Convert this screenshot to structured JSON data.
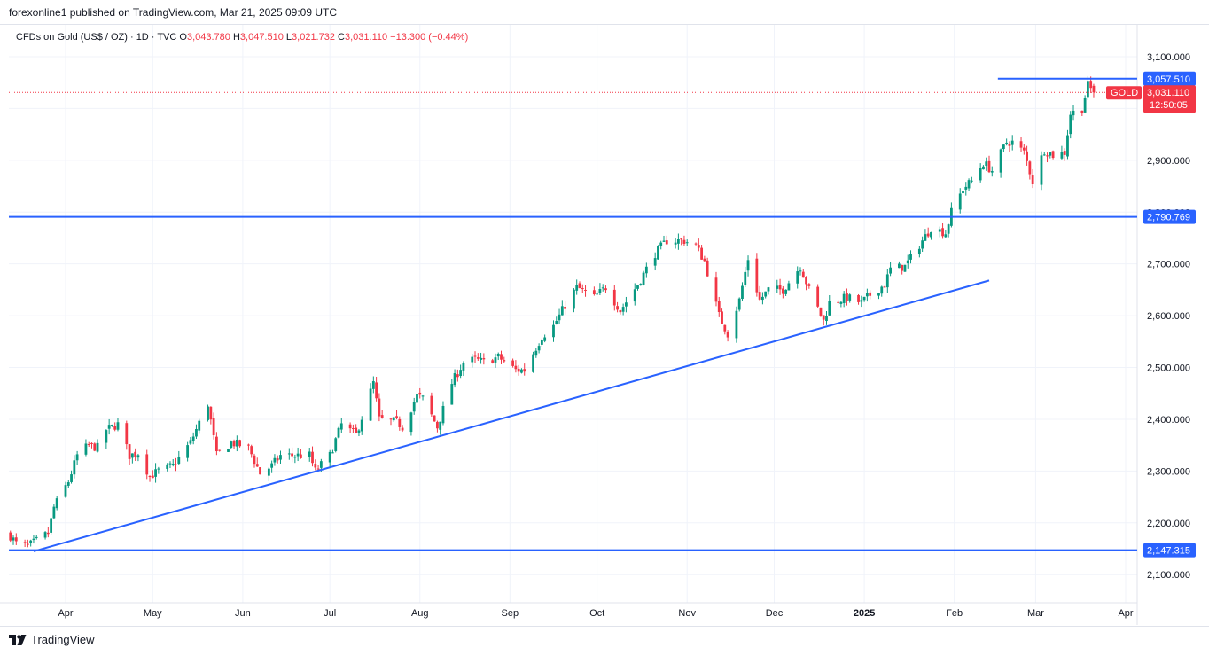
{
  "header": {
    "publisher": "forexonline1 published on TradingView.com, Mar 21, 2025 09:09 UTC"
  },
  "legend": {
    "symbol": "CFDs on Gold (US$ / OZ) · 1D · TVC",
    "open_label": "O",
    "open": "3,043.780",
    "high_label": "H",
    "high": "3,047.510",
    "low_label": "L",
    "low": "3,021.732",
    "close_label": "C",
    "close": "3,031.110",
    "change": "−13.300 (−0.44%)"
  },
  "price_axis": {
    "ticks": [
      "3,100.000",
      "2,900.000",
      "2,800.000",
      "2,700.000",
      "2,600.000",
      "2,500.000",
      "2,400.000",
      "2,300.000",
      "2,200.000",
      "2,100.000"
    ],
    "hline_labels": [
      "3,057.510",
      "2,790.769",
      "2,147.315"
    ],
    "symbol_tag": "GOLD",
    "last_price": "3,031.110",
    "countdown": "12:50:05"
  },
  "time_axis": {
    "labels": [
      "Apr",
      "May",
      "Jun",
      "Jul",
      "Aug",
      "Sep",
      "Oct",
      "Nov",
      "Dec",
      "2025",
      "Feb",
      "Mar",
      "Apr"
    ]
  },
  "footer": {
    "brand": "TradingView"
  },
  "colors": {
    "up": "#089981",
    "down": "#f23645",
    "line": "#2962ff",
    "grid": "#f0f3fa"
  },
  "chart_data": {
    "type": "candlestick",
    "timeframe": "1D",
    "ylim": [
      2070,
      3135
    ],
    "grid": true,
    "horizontal_lines": [
      3057.51,
      2790.769,
      2147.315
    ],
    "trendline": [
      {
        "date": "2024-03-21",
        "price": 2145
      },
      {
        "date": "2025-02-13",
        "price": 2668
      }
    ],
    "series": [
      {
        "name": "Gold daily close (approx.)",
        "points": [
          [
            "2024-03-13",
            2175
          ],
          [
            "2024-03-15",
            2160
          ],
          [
            "2024-03-19",
            2155
          ],
          [
            "2024-03-22",
            2165
          ],
          [
            "2024-03-26",
            2180
          ],
          [
            "2024-03-28",
            2230
          ],
          [
            "2024-04-02",
            2280
          ],
          [
            "2024-04-05",
            2330
          ],
          [
            "2024-04-09",
            2350
          ],
          [
            "2024-04-12",
            2345
          ],
          [
            "2024-04-15",
            2380
          ],
          [
            "2024-04-19",
            2390
          ],
          [
            "2024-04-23",
            2330
          ],
          [
            "2024-04-26",
            2335
          ],
          [
            "2024-04-30",
            2290
          ],
          [
            "2024-05-03",
            2300
          ],
          [
            "2024-05-08",
            2310
          ],
          [
            "2024-05-14",
            2355
          ],
          [
            "2024-05-20",
            2430
          ],
          [
            "2024-05-23",
            2330
          ],
          [
            "2024-05-28",
            2355
          ],
          [
            "2024-06-03",
            2345
          ],
          [
            "2024-06-07",
            2295
          ],
          [
            "2024-06-11",
            2310
          ],
          [
            "2024-06-14",
            2330
          ],
          [
            "2024-06-18",
            2330
          ],
          [
            "2024-06-24",
            2330
          ],
          [
            "2024-06-26",
            2300
          ],
          [
            "2024-07-01",
            2330
          ],
          [
            "2024-07-05",
            2390
          ],
          [
            "2024-07-10",
            2370
          ],
          [
            "2024-07-16",
            2470
          ],
          [
            "2024-07-18",
            2400
          ],
          [
            "2024-07-24",
            2395
          ],
          [
            "2024-07-26",
            2385
          ],
          [
            "2024-07-31",
            2445
          ],
          [
            "2024-08-02",
            2440
          ],
          [
            "2024-08-07",
            2385
          ],
          [
            "2024-08-12",
            2470
          ],
          [
            "2024-08-16",
            2510
          ],
          [
            "2024-08-20",
            2515
          ],
          [
            "2024-08-23",
            2510
          ],
          [
            "2024-08-28",
            2520
          ],
          [
            "2024-09-03",
            2495
          ],
          [
            "2024-09-06",
            2495
          ],
          [
            "2024-09-12",
            2560
          ],
          [
            "2024-09-16",
            2580
          ],
          [
            "2024-09-20",
            2620
          ],
          [
            "2024-09-24",
            2655
          ],
          [
            "2024-09-30",
            2635
          ],
          [
            "2024-10-04",
            2655
          ],
          [
            "2024-10-09",
            2610
          ],
          [
            "2024-10-15",
            2660
          ],
          [
            "2024-10-21",
            2720
          ],
          [
            "2024-10-25",
            2745
          ],
          [
            "2024-10-31",
            2745
          ],
          [
            "2024-11-04",
            2735
          ],
          [
            "2024-11-07",
            2705
          ],
          [
            "2024-11-12",
            2600
          ],
          [
            "2024-11-15",
            2565
          ],
          [
            "2024-11-19",
            2630
          ],
          [
            "2024-11-22",
            2710
          ],
          [
            "2024-11-26",
            2630
          ],
          [
            "2024-11-29",
            2650
          ],
          [
            "2024-12-04",
            2650
          ],
          [
            "2024-12-10",
            2695
          ],
          [
            "2024-12-13",
            2650
          ],
          [
            "2024-12-18",
            2590
          ],
          [
            "2024-12-20",
            2625
          ],
          [
            "2024-12-26",
            2635
          ],
          [
            "2024-12-31",
            2625
          ],
          [
            "2025-01-03",
            2640
          ],
          [
            "2025-01-08",
            2660
          ],
          [
            "2025-01-10",
            2690
          ],
          [
            "2025-01-15",
            2695
          ],
          [
            "2025-01-21",
            2745
          ],
          [
            "2025-01-24",
            2770
          ],
          [
            "2025-01-29",
            2760
          ],
          [
            "2025-01-31",
            2800
          ],
          [
            "2025-02-04",
            2845
          ],
          [
            "2025-02-07",
            2860
          ],
          [
            "2025-02-11",
            2895
          ],
          [
            "2025-02-14",
            2880
          ],
          [
            "2025-02-19",
            2935
          ],
          [
            "2025-02-21",
            2935
          ],
          [
            "2025-02-25",
            2915
          ],
          [
            "2025-02-28",
            2860
          ],
          [
            "2025-03-04",
            2920
          ],
          [
            "2025-03-07",
            2910
          ],
          [
            "2025-03-11",
            2915
          ],
          [
            "2025-03-13",
            2990
          ],
          [
            "2025-03-17",
            3000
          ],
          [
            "2025-03-19",
            3045
          ],
          [
            "2025-03-21",
            3031.11
          ]
        ]
      }
    ]
  }
}
